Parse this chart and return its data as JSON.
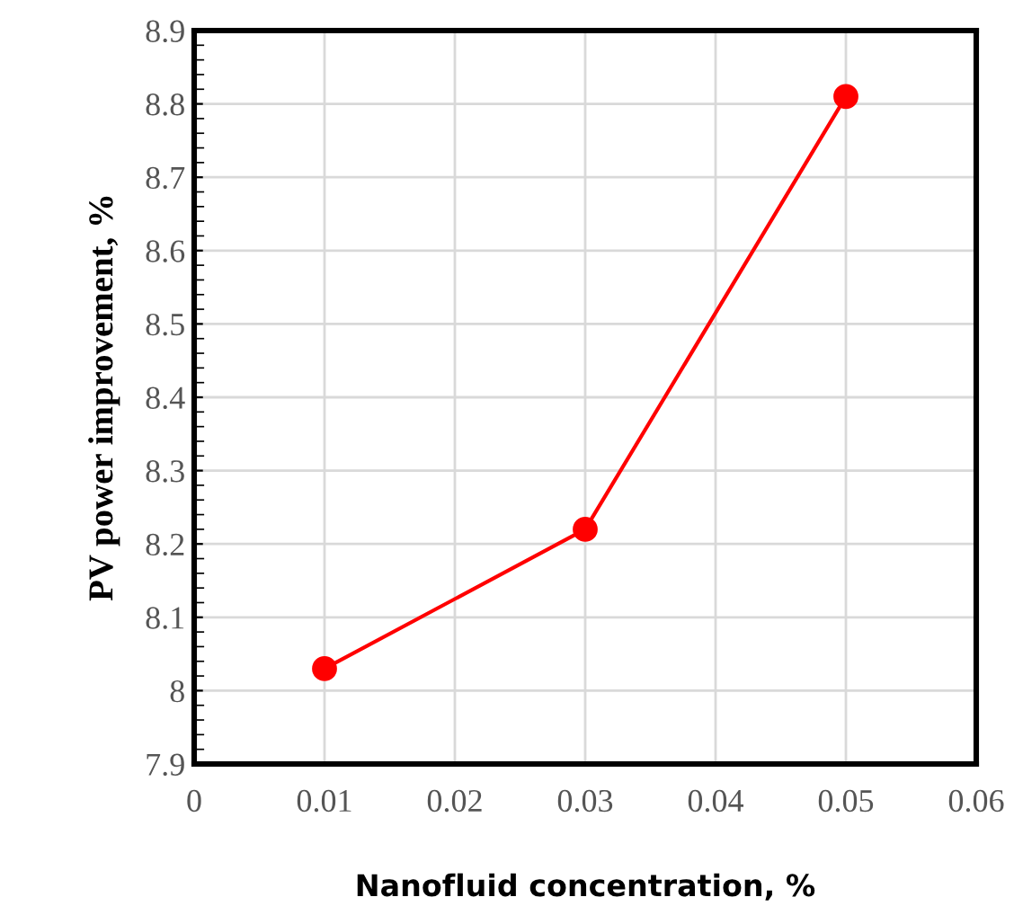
{
  "chart_data": {
    "type": "line",
    "xlabel": "Nanofluid concentration, %",
    "ylabel": "PV power improvement, %",
    "x": [
      0.01,
      0.03,
      0.05
    ],
    "series": [
      {
        "color": "#ff0000",
        "values": [
          8.03,
          8.22,
          8.81
        ]
      }
    ],
    "xlim": [
      0,
      0.06
    ],
    "xticks": [
      0,
      0.01,
      0.02,
      0.03,
      0.04,
      0.05,
      0.06
    ],
    "ylim": [
      7.9,
      8.9
    ],
    "yticks": [
      7.9,
      8,
      8.1,
      8.2,
      8.3,
      8.4,
      8.5,
      8.6,
      8.7,
      8.8,
      8.9
    ],
    "grid": true,
    "marker": "circle",
    "line_style": "solid"
  }
}
